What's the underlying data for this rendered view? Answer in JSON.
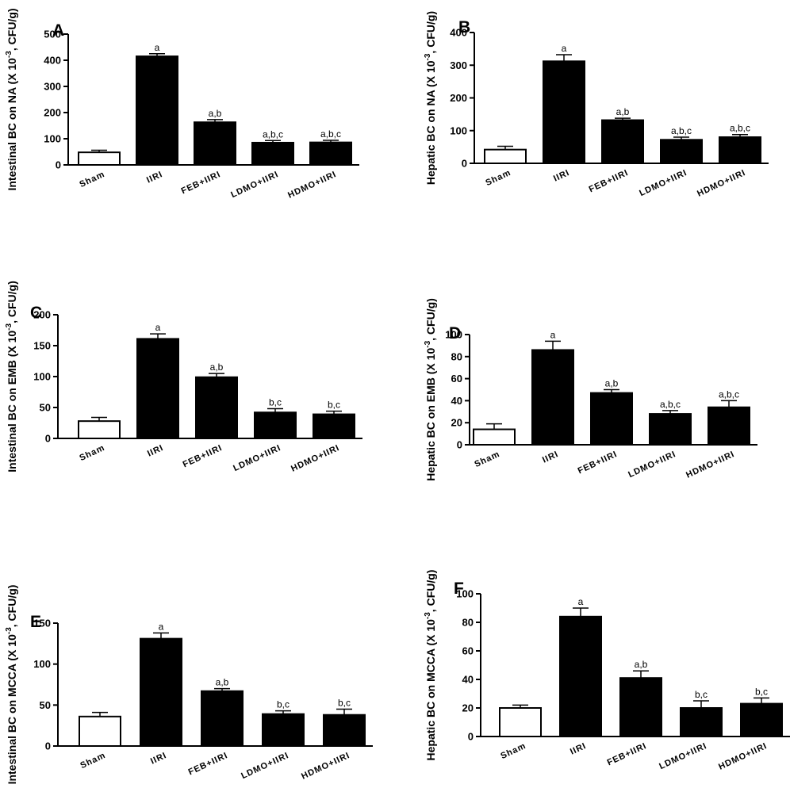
{
  "chart_data": [
    {
      "panel": "A",
      "type": "bar",
      "ylabel_pre": "Intestinal BC on NA (X 10",
      "ylabel_sup": "-3",
      "ylabel_post": ", CFU/g)",
      "categories": [
        "Sham",
        "IIRI",
        "FEB+IIRI",
        "LDMO+IIRI",
        "HDMO+IIRI"
      ],
      "values": [
        48,
        415,
        163,
        85,
        86
      ],
      "errors": [
        8,
        10,
        10,
        8,
        8
      ],
      "significance": [
        "",
        "a",
        "a,b",
        "a,b,c",
        "a,b,c"
      ],
      "yticks": [
        0,
        100,
        200,
        300,
        400,
        500
      ],
      "ylim": [
        0,
        500
      ]
    },
    {
      "panel": "B",
      "type": "bar",
      "ylabel_pre": "Hepatic BC on NA (X 10",
      "ylabel_sup": "-3",
      "ylabel_post": ", CFU/g)",
      "categories": [
        "Sham",
        "IIRI",
        "FEB+IIRI",
        "LDMO+IIRI",
        "HDMO+IIRI"
      ],
      "values": [
        42,
        312,
        132,
        72,
        80
      ],
      "errors": [
        10,
        20,
        6,
        8,
        8
      ],
      "significance": [
        "",
        "a",
        "a,b",
        "a,b,c",
        "a,b,c"
      ],
      "yticks": [
        0,
        100,
        200,
        300,
        400
      ],
      "ylim": [
        0,
        400
      ]
    },
    {
      "panel": "C",
      "type": "bar",
      "ylabel_pre": "Intestinal BC on EMB (X 10",
      "ylabel_sup": "-3",
      "ylabel_post": ", CFU/g)",
      "categories": [
        "Sham",
        "IIRI",
        "FEB+IIRI",
        "LDMO+IIRI",
        "HDMO+IIRI"
      ],
      "values": [
        28,
        161,
        99,
        42,
        39
      ],
      "errors": [
        6,
        8,
        6,
        6,
        5
      ],
      "significance": [
        "",
        "a",
        "a,b",
        "b,c",
        "b,c"
      ],
      "yticks": [
        0,
        50,
        100,
        150,
        200
      ],
      "ylim": [
        0,
        200
      ]
    },
    {
      "panel": "D",
      "type": "bar",
      "ylabel_pre": "Hepatic BC on EMB (X 10",
      "ylabel_sup": "-3",
      "ylabel_post": ", CFU/g)",
      "categories": [
        "Sham",
        "IIRI",
        "FEB+IIRI",
        "LDMO+IIRI",
        "HDMO+IIRI"
      ],
      "values": [
        14,
        86,
        47,
        28,
        34
      ],
      "errors": [
        5,
        8,
        3,
        3,
        6
      ],
      "significance": [
        "",
        "a",
        "a,b",
        "a,b,c",
        "a,b,c"
      ],
      "yticks": [
        0,
        20,
        40,
        60,
        80,
        100
      ],
      "ylim": [
        0,
        100
      ]
    },
    {
      "panel": "E",
      "type": "bar",
      "ylabel_pre": "Intestinal BC on MCCA (X 10",
      "ylabel_sup": "-3",
      "ylabel_post": ", CFU/g)",
      "categories": [
        "Sham",
        "IIRI",
        "FEB+IIRI",
        "LDMO+IIRI",
        "HDMO+IIRI"
      ],
      "values": [
        36,
        131,
        67,
        39,
        38
      ],
      "errors": [
        5,
        7,
        3,
        4,
        7
      ],
      "significance": [
        "",
        "a",
        "a,b",
        "b,c",
        "b,c"
      ],
      "yticks": [
        0,
        50,
        100,
        150
      ],
      "ylim": [
        0,
        150
      ]
    },
    {
      "panel": "F",
      "type": "bar",
      "ylabel_pre": "Hepatic BC on MCCA (X 10",
      "ylabel_sup": "-3",
      "ylabel_post": ", CFU/g)",
      "categories": [
        "Sham",
        "IIRI",
        "FEB+IIRI",
        "LDMO+IIRI",
        "HDMO+IIRI"
      ],
      "values": [
        20,
        84,
        41,
        20,
        23
      ],
      "errors": [
        2,
        6,
        5,
        5,
        4
      ],
      "significance": [
        "",
        "a",
        "a,b",
        "b,c",
        "b,c"
      ],
      "yticks": [
        0,
        20,
        40,
        60,
        80,
        100
      ],
      "ylim": [
        0,
        100
      ]
    }
  ],
  "colors": {
    "sham_fill": "#ffffff",
    "treated_fill": "#000000",
    "stroke": "#000000"
  }
}
